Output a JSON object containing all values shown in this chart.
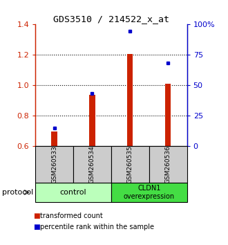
{
  "title": "GDS3510 / 214522_x_at",
  "samples": [
    "GSM260533",
    "GSM260534",
    "GSM260535",
    "GSM260536"
  ],
  "red_values": [
    0.695,
    0.935,
    1.205,
    1.01
  ],
  "blue_values": [
    0.715,
    0.945,
    1.355,
    1.145
  ],
  "red_base": 0.6,
  "ylim": [
    0.6,
    1.4
  ],
  "yticks_left": [
    0.6,
    0.8,
    1.0,
    1.2,
    1.4
  ],
  "yticks_right": [
    0,
    25,
    50,
    75,
    100
  ],
  "bar_color": "#cc2200",
  "dot_color": "#0000cc",
  "bg_color": "#cccccc",
  "group1_color": "#bbffbb",
  "group2_color": "#44dd44",
  "legend_red": "transformed count",
  "legend_blue": "percentile rank within the sample",
  "protocol_label": "protocol",
  "grid_lines": [
    0.8,
    1.0,
    1.2
  ],
  "bar_width": 0.15
}
